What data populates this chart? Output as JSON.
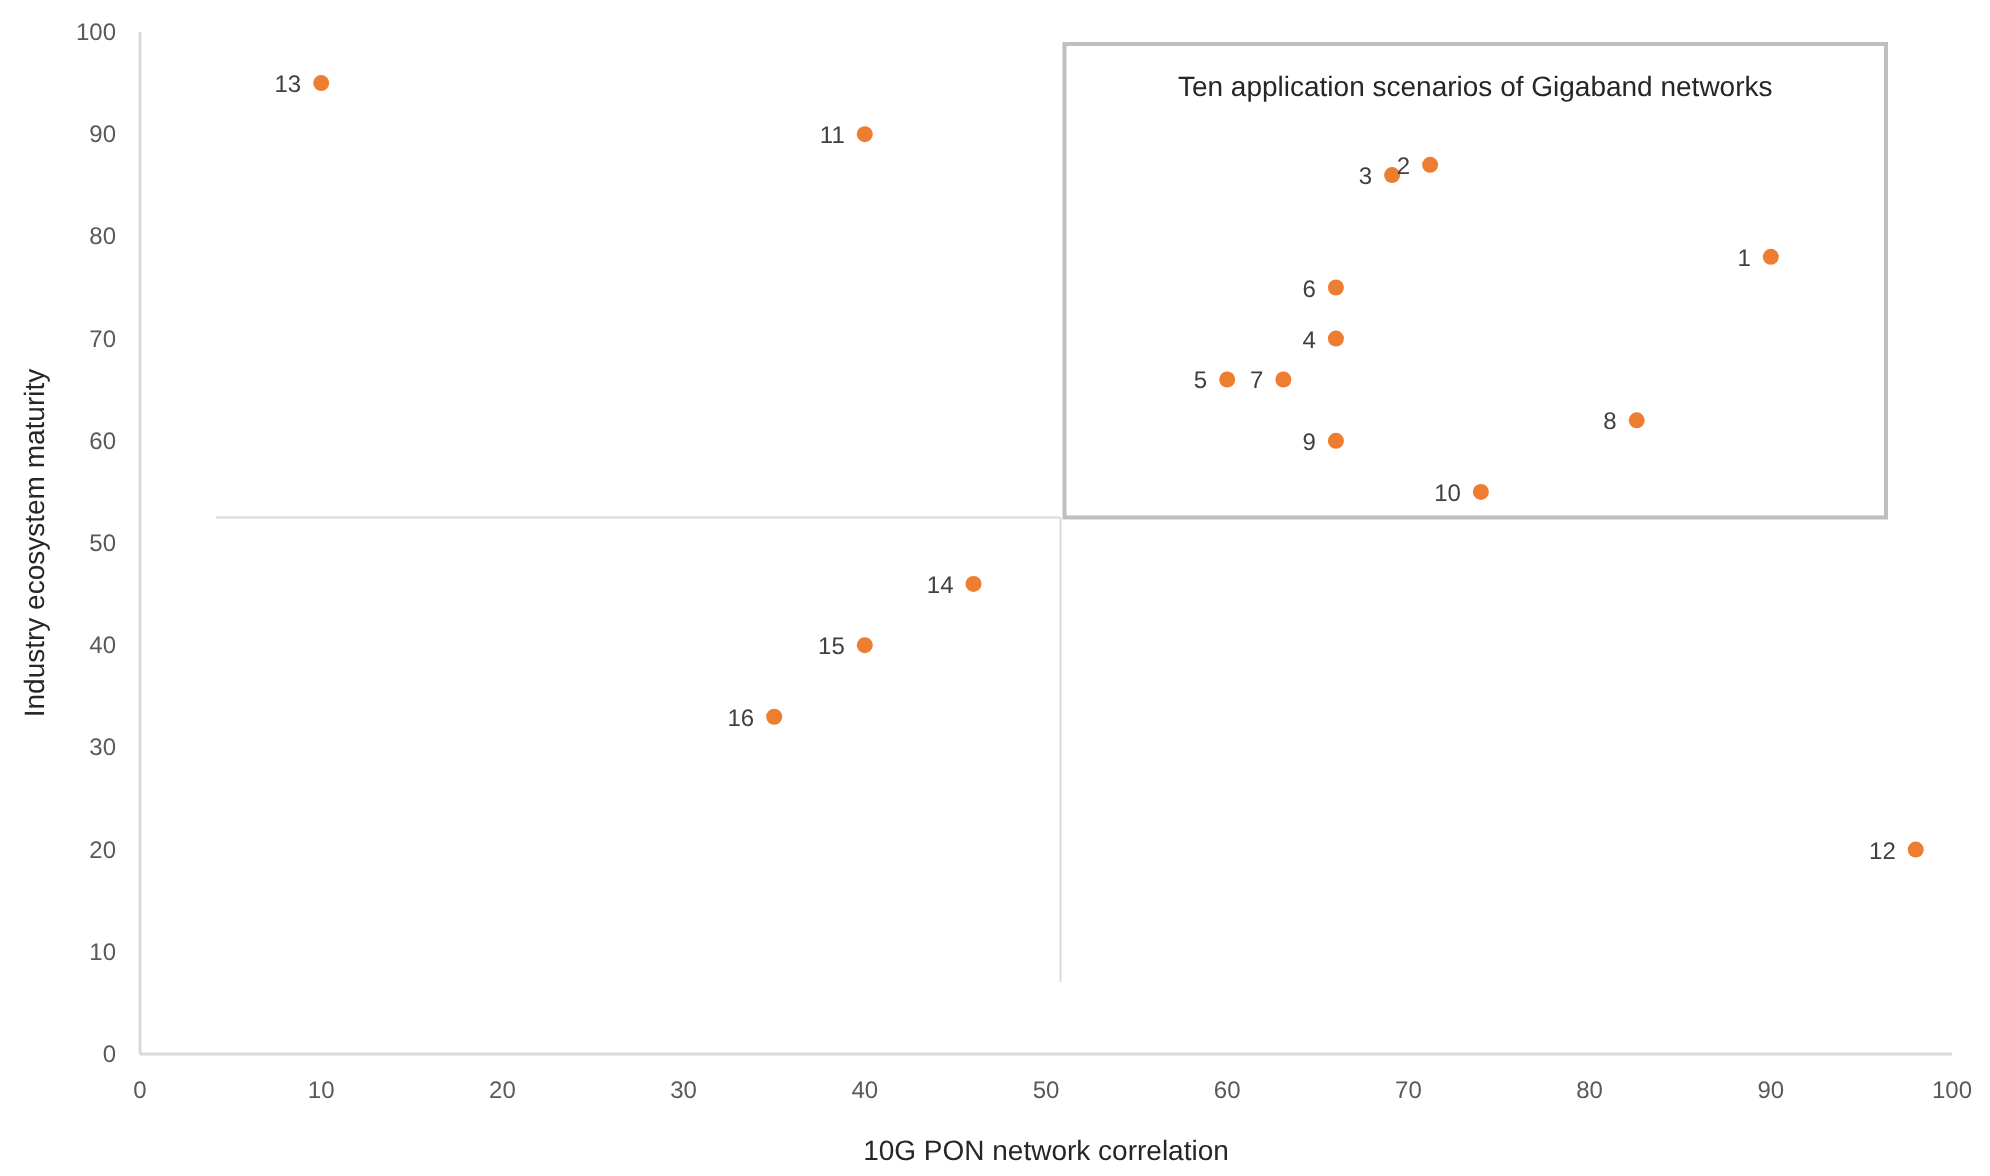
{
  "chart_data": {
    "type": "scatter",
    "xlabel": "10G PON network correlation",
    "ylabel": "Industry ecosystem maturity",
    "x": [
      90,
      71.2,
      69.1,
      66,
      60,
      66,
      63.1,
      82.6,
      66,
      74,
      40,
      98,
      10,
      46,
      40,
      35
    ],
    "series": [
      {
        "color": "#ed7d31",
        "values": [
          78,
          87,
          86,
          70,
          66,
          75,
          66,
          62,
          60,
          55,
          90,
          20,
          95,
          46,
          40,
          33
        ]
      }
    ],
    "xlim": [
      0,
      100
    ],
    "xticks": [
      0,
      10,
      20,
      30,
      40,
      50,
      60,
      70,
      80,
      90,
      100
    ],
    "ylim": [
      0,
      100
    ],
    "yticks": [
      0,
      10,
      20,
      30,
      40,
      50,
      60,
      70,
      80,
      90,
      100
    ],
    "marker": "circle",
    "ref_lines": [
      {
        "axis": "y",
        "value": 52.5,
        "color": "#d9d9d9"
      },
      {
        "axis": "x",
        "value": 50.8,
        "color": "#d9d9d9"
      }
    ],
    "annotations": [
      "Ten application scenarios of Gigaband networks",
      {
        "text": "1",
        "x": 90,
        "y": 78
      },
      {
        "text": "2",
        "x": 71.2,
        "y": 87
      },
      {
        "text": "3",
        "x": 69.1,
        "y": 86
      },
      {
        "text": "4",
        "x": 66,
        "y": 70
      },
      {
        "text": "5",
        "x": 60,
        "y": 66
      },
      {
        "text": "6",
        "x": 66,
        "y": 75
      },
      {
        "text": "7",
        "x": 63.1,
        "y": 66
      },
      {
        "text": "8",
        "x": 82.6,
        "y": 62
      },
      {
        "text": "9",
        "x": 66,
        "y": 60
      },
      {
        "text": "10",
        "x": 74,
        "y": 55
      },
      {
        "text": "11",
        "x": 40,
        "y": 90
      },
      {
        "text": "12",
        "x": 98,
        "y": 20
      },
      {
        "text": "13",
        "x": 10,
        "y": 95
      },
      {
        "text": "14",
        "x": 46,
        "y": 46
      },
      {
        "text": "15",
        "x": 40,
        "y": 40
      },
      {
        "text": "16",
        "x": 35,
        "y": 33
      }
    ]
  }
}
